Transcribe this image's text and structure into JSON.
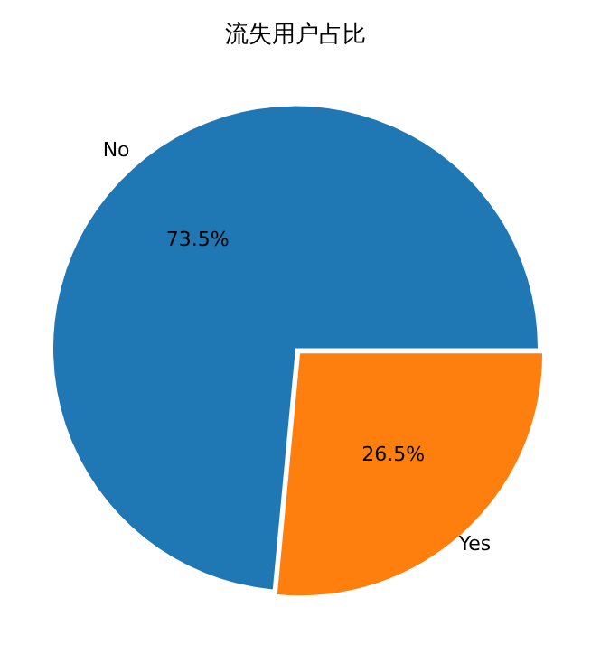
{
  "chart_data": {
    "type": "pie",
    "title": "流失用户占比",
    "categories": [
      "No",
      "Yes"
    ],
    "values": [
      73.5,
      26.5
    ],
    "colors": [
      "#1f77b4",
      "#ff7f0e"
    ],
    "value_labels": [
      "73.5%",
      "26.5%"
    ],
    "legend": false
  }
}
